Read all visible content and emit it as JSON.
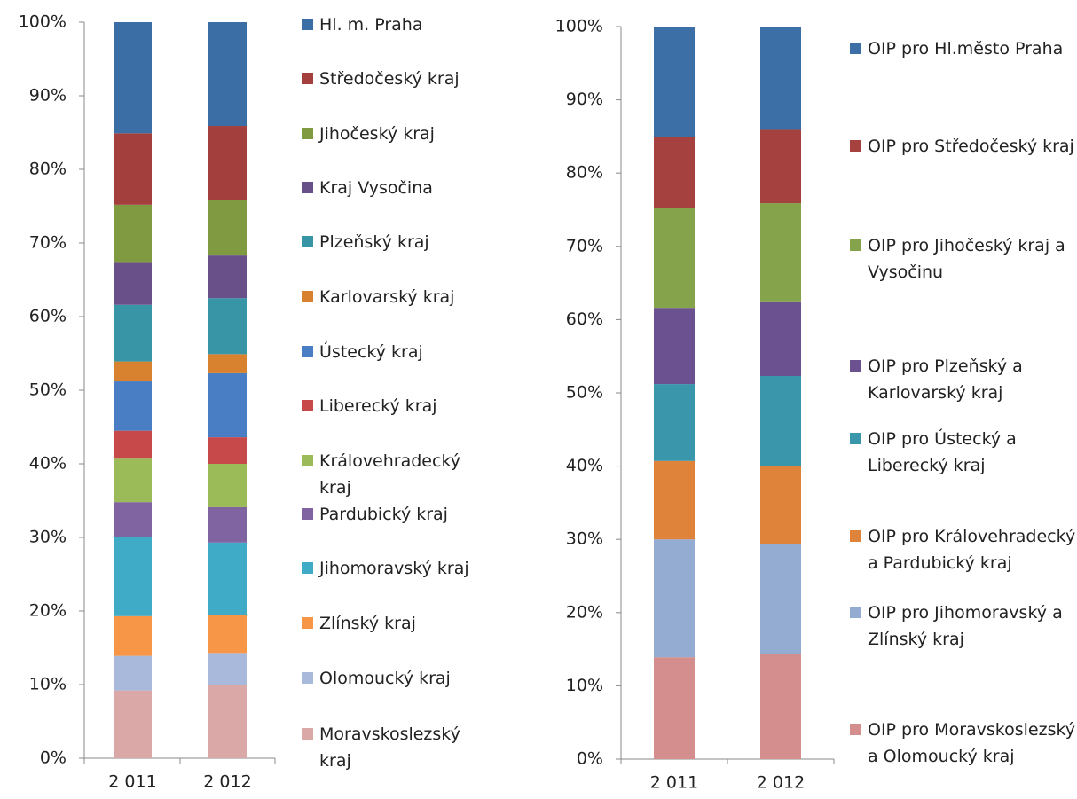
{
  "chart_data": [
    {
      "type": "stacked_bar",
      "categories": [
        "2 011",
        "2 012"
      ],
      "ylim": [
        0,
        100
      ],
      "yticks": [
        {
          "value": 0,
          "label": "0%"
        },
        {
          "value": 10,
          "label": "10%"
        },
        {
          "value": 20,
          "label": "20%"
        },
        {
          "value": 30,
          "label": "30%"
        },
        {
          "value": 40,
          "label": "40%"
        },
        {
          "value": 50,
          "label": "50%"
        },
        {
          "value": 60,
          "label": "60%"
        },
        {
          "value": 70,
          "label": "70%"
        },
        {
          "value": 80,
          "label": "80%"
        },
        {
          "value": 90,
          "label": "90%"
        },
        {
          "value": 100,
          "label": "100%"
        }
      ],
      "legend": "right",
      "series": [
        {
          "name": "Hl. m. Praha",
          "color": "#3a6ea5",
          "values": [
            15.1,
            14.1
          ]
        },
        {
          "name": "Středočeský kraj",
          "color": "#a33f3c",
          "values": [
            9.7,
            10.0
          ]
        },
        {
          "name": "Jihočeský kraj",
          "color": "#7f9a41",
          "values": [
            7.9,
            7.6
          ]
        },
        {
          "name": "Kraj Vysočina",
          "color": "#6a5088",
          "values": [
            5.7,
            5.8
          ]
        },
        {
          "name": "Plzeňský kraj",
          "color": "#3795a5",
          "values": [
            7.7,
            7.6
          ]
        },
        {
          "name": "Karlovarský kraj",
          "color": "#d8822f",
          "values": [
            2.7,
            2.6
          ]
        },
        {
          "name": "Ústecký kraj",
          "color": "#4a7ec4",
          "values": [
            6.7,
            8.7
          ]
        },
        {
          "name": "Liberecký kraj",
          "color": "#c8494a",
          "values": [
            3.8,
            3.6
          ]
        },
        {
          "name": "Královehradecký kraj",
          "color": "#9bbb59",
          "values": [
            5.9,
            5.9
          ]
        },
        {
          "name": "Pardubický kraj",
          "color": "#8064a2",
          "values": [
            4.8,
            4.8
          ]
        },
        {
          "name": "Jihomoravský kraj",
          "color": "#40abc6",
          "values": [
            10.7,
            9.8
          ]
        },
        {
          "name": "Zlínský kraj",
          "color": "#f79646",
          "values": [
            5.4,
            5.2
          ]
        },
        {
          "name": "Olomoucký kraj",
          "color": "#a9b9dc",
          "values": [
            4.7,
            4.4
          ]
        },
        {
          "name": "Moravskoslezský kraj",
          "color": "#d9a8a7",
          "values": [
            9.2,
            9.9
          ]
        }
      ]
    },
    {
      "type": "stacked_bar",
      "categories": [
        "2 011",
        "2 012"
      ],
      "ylim": [
        0,
        100
      ],
      "yticks": [
        {
          "value": 0,
          "label": "0%"
        },
        {
          "value": 10,
          "label": "10%"
        },
        {
          "value": 20,
          "label": "20%"
        },
        {
          "value": 30,
          "label": "30%"
        },
        {
          "value": 40,
          "label": "40%"
        },
        {
          "value": 50,
          "label": "50%"
        },
        {
          "value": 60,
          "label": "60%"
        },
        {
          "value": 70,
          "label": "70%"
        },
        {
          "value": 80,
          "label": "80%"
        },
        {
          "value": 90,
          "label": "90%"
        },
        {
          "value": 100,
          "label": "100%"
        }
      ],
      "legend": "right",
      "series": [
        {
          "name": "OIP pro Hl.město Praha",
          "color": "#3c6fa6",
          "values": [
            15.1,
            14.1
          ]
        },
        {
          "name": "OIP pro Středočeský kraj",
          "color": "#a5413e",
          "values": [
            9.7,
            10.0
          ]
        },
        {
          "name": "OIP pro Jihočeský kraj a Vysočinu",
          "color": "#84a34b",
          "values": [
            13.6,
            13.4
          ]
        },
        {
          "name": "OIP pro Plzeňský a Karlovarský kraj",
          "color": "#6c5190",
          "values": [
            10.4,
            10.2
          ]
        },
        {
          "name": "OIP pro Ústecký a Liberecký kraj",
          "color": "#3a97ab",
          "values": [
            10.5,
            12.3
          ]
        },
        {
          "name": "OIP pro Královehradecký a Pardubický kraj",
          "color": "#e0833a",
          "values": [
            10.7,
            10.7
          ]
        },
        {
          "name": "OIP pro Jihomoravský a Zlínský kraj",
          "color": "#94abd2",
          "values": [
            16.1,
            15.0
          ]
        },
        {
          "name": "OIP pro Moravskoslezský a Olomoucký kraj",
          "color": "#d38e8d",
          "values": [
            13.9,
            14.3
          ]
        }
      ]
    }
  ]
}
